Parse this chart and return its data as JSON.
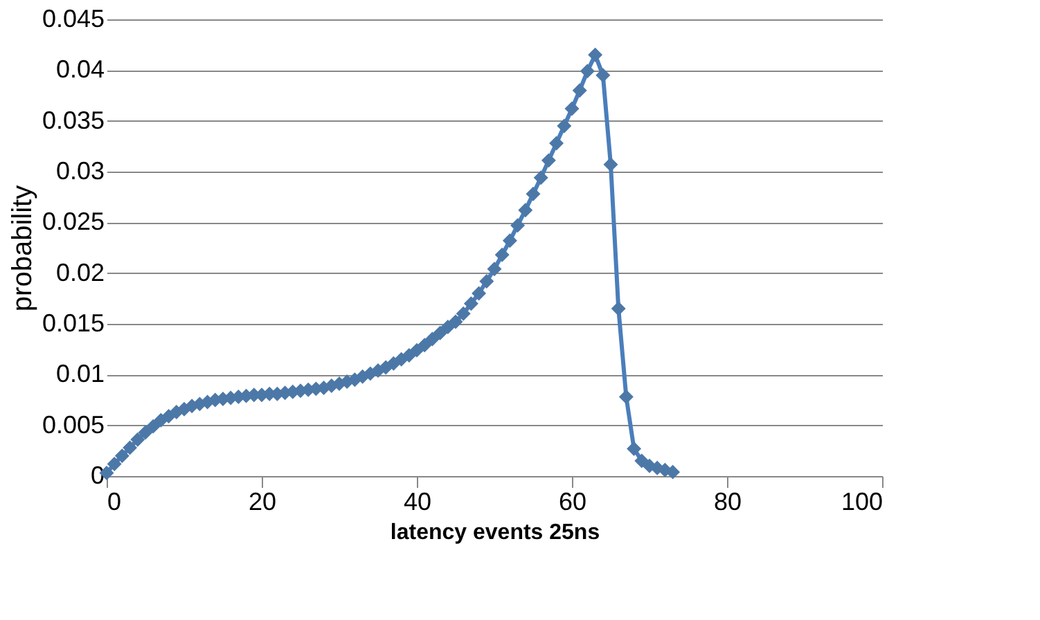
{
  "chart_data": {
    "type": "line",
    "xlabel": "latency events 25ns",
    "ylabel": "probability",
    "x": [
      0,
      1,
      2,
      3,
      4,
      5,
      6,
      7,
      8,
      9,
      10,
      11,
      12,
      13,
      14,
      15,
      16,
      17,
      18,
      19,
      20,
      21,
      22,
      23,
      24,
      25,
      26,
      27,
      28,
      29,
      30,
      31,
      32,
      33,
      34,
      35,
      36,
      37,
      38,
      39,
      40,
      41,
      42,
      43,
      44,
      45,
      46,
      47,
      48,
      49,
      50,
      51,
      52,
      53,
      54,
      55,
      56,
      57,
      58,
      59,
      60,
      61,
      62,
      63,
      64,
      65,
      66,
      67,
      68,
      69,
      70,
      71,
      72,
      73
    ],
    "series": [
      {
        "color": "#4a7ebb",
        "values": [
          0.0003,
          0.0012,
          0.002,
          0.0028,
          0.0036,
          0.0043,
          0.0049,
          0.0055,
          0.0059,
          0.0063,
          0.0066,
          0.0069,
          0.0071,
          0.0073,
          0.0075,
          0.0076,
          0.0077,
          0.0078,
          0.0079,
          0.008,
          0.008,
          0.0081,
          0.0081,
          0.0082,
          0.0083,
          0.0084,
          0.0085,
          0.0086,
          0.0087,
          0.0089,
          0.0091,
          0.0093,
          0.0095,
          0.0098,
          0.0101,
          0.0104,
          0.0107,
          0.0111,
          0.0115,
          0.0119,
          0.0124,
          0.0129,
          0.0135,
          0.0141,
          0.0147,
          0.0152,
          0.016,
          0.017,
          0.018,
          0.0192,
          0.0204,
          0.0218,
          0.0232,
          0.0247,
          0.0262,
          0.0278,
          0.0294,
          0.0311,
          0.0328,
          0.0345,
          0.0362,
          0.038,
          0.0399,
          0.0415,
          0.0395,
          0.0307,
          0.0165,
          0.0078,
          0.0027,
          0.0015,
          0.001,
          0.0008,
          0.0006,
          0.0004
        ]
      }
    ],
    "xlim": [
      0,
      100
    ],
    "xticks": [
      0,
      20,
      40,
      60,
      80,
      100
    ],
    "ylim": [
      0,
      0.045
    ],
    "yticks": [
      0,
      0.005,
      0.01,
      0.015,
      0.02,
      0.025,
      0.03,
      0.035,
      0.04,
      0.045
    ],
    "grid": "y",
    "marker": "diamond",
    "line_style": "solid"
  }
}
